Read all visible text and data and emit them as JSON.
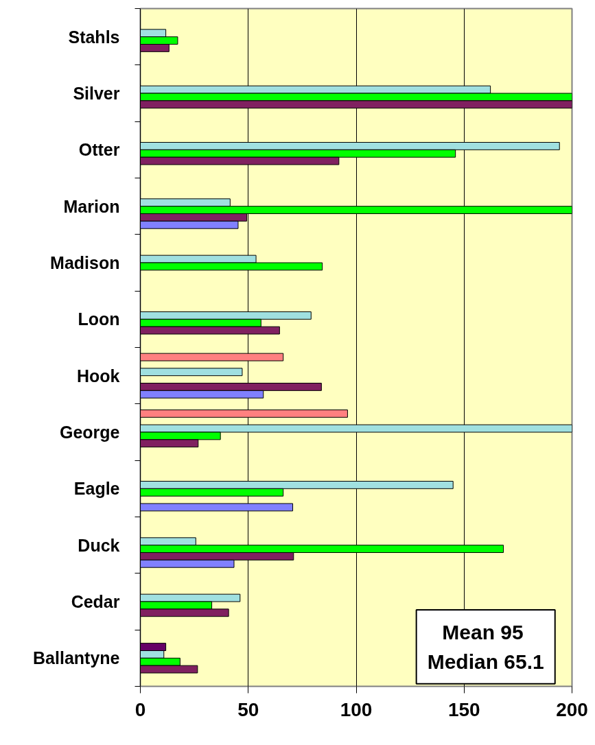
{
  "chart_data": {
    "type": "bar",
    "orientation": "horizontal",
    "categories": [
      "Stahls",
      "Silver",
      "Otter",
      "Marion",
      "Madison",
      "Loon",
      "Hook",
      "George",
      "Eagle",
      "Duck",
      "Cedar",
      "Ballantyne"
    ],
    "series": [
      {
        "color": "#ff8080",
        "values": [
          null,
          null,
          null,
          null,
          null,
          null,
          66.2,
          96,
          null,
          null,
          null,
          null
        ]
      },
      {
        "color": "#660066",
        "values": [
          null,
          null,
          null,
          null,
          null,
          null,
          null,
          null,
          null,
          null,
          null,
          11.8
        ]
      },
      {
        "color": "#a0e0e0",
        "values": [
          11.8,
          162.2,
          194.2,
          41.6,
          53.6,
          79.1,
          47.2,
          200,
          144.9,
          25.7,
          46.2,
          10.9
        ]
      },
      {
        "color": "#00ff00",
        "values": [
          17.3,
          200,
          146,
          200,
          84.3,
          55.9,
          null,
          37.1,
          66.2,
          168.2,
          33.1,
          18.4
        ]
      },
      {
        "color": "#802060",
        "values": [
          13.3,
          200,
          92,
          49.3,
          null,
          64.5,
          83.9,
          26.8,
          null,
          71,
          40.9,
          26.5
        ]
      },
      {
        "color": "#8080ff",
        "values": [
          null,
          null,
          null,
          45.3,
          null,
          null,
          57,
          null,
          70.6,
          43.4,
          null,
          null
        ]
      }
    ],
    "xlim": [
      0,
      200
    ],
    "xticks": [
      0,
      50,
      100,
      150,
      200
    ],
    "grid": "x",
    "annotations": [
      "Mean  95",
      "Median 65.1"
    ]
  }
}
